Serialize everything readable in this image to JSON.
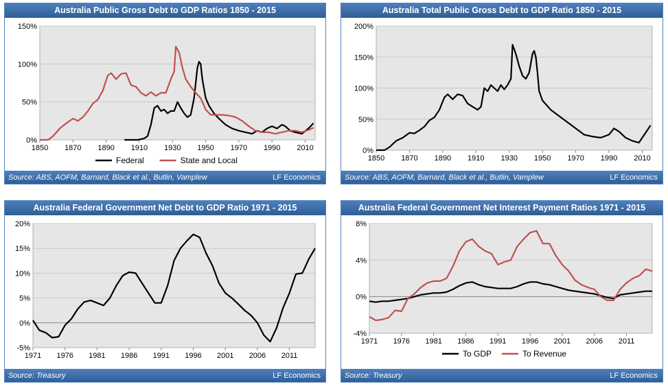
{
  "common": {
    "brand": "LF Economics"
  },
  "chart_data": [
    {
      "type": "line",
      "title": "Australia Public Gross Debt to GDP Ratios 1850 - 2015",
      "source": "Source: ABS, AOFM, Barnard, Black et al., Butlin, Vamplew",
      "xlim": [
        1850,
        2016
      ],
      "ylim": [
        0,
        150
      ],
      "x_ticks": [
        1850,
        1870,
        1890,
        1910,
        1930,
        1950,
        1970,
        1990,
        2010
      ],
      "x_tick_labels": [
        "1850",
        "1870",
        "1890",
        "1910",
        "1930",
        "1950",
        "1970",
        "1990",
        "2010"
      ],
      "y_ticks": [
        0,
        50,
        100,
        150
      ],
      "y_tick_labels": [
        "0%",
        "50%",
        "100%",
        "150%"
      ],
      "legend": "bottom",
      "series": [
        {
          "name": "Federal",
          "color": "#000000",
          "x": [
            1901,
            1906,
            1909,
            1911,
            1913,
            1915,
            1917,
            1919,
            1921,
            1923,
            1925,
            1927,
            1929,
            1931,
            1933,
            1935,
            1937,
            1939,
            1941,
            1943,
            1944,
            1945,
            1946,
            1947,
            1948,
            1950,
            1952,
            1955,
            1958,
            1962,
            1966,
            1970,
            1974,
            1978,
            1981,
            1984,
            1987,
            1990,
            1993,
            1996,
            1998,
            2001,
            2004,
            2008,
            2012,
            2015
          ],
          "y": [
            0,
            0,
            0,
            1,
            2,
            5,
            20,
            42,
            45,
            38,
            40,
            35,
            38,
            38,
            50,
            42,
            35,
            30,
            33,
            55,
            75,
            95,
            103,
            100,
            80,
            55,
            45,
            35,
            28,
            20,
            15,
            12,
            10,
            8,
            12,
            10,
            15,
            18,
            15,
            20,
            18,
            12,
            10,
            8,
            15,
            22
          ]
        },
        {
          "name": "State and Local",
          "color": "#c0504d",
          "x": [
            1850,
            1855,
            1858,
            1862,
            1866,
            1870,
            1873,
            1876,
            1879,
            1882,
            1885,
            1888,
            1891,
            1893,
            1896,
            1899,
            1902,
            1905,
            1908,
            1911,
            1914,
            1917,
            1920,
            1923,
            1926,
            1929,
            1931,
            1932,
            1934,
            1936,
            1938,
            1941,
            1944,
            1947,
            1950,
            1953,
            1956,
            1960,
            1964,
            1968,
            1972,
            1976,
            1980,
            1984,
            1988,
            1992,
            1996,
            2000,
            2004,
            2008,
            2012,
            2015
          ],
          "y": [
            0,
            0,
            5,
            15,
            22,
            28,
            25,
            30,
            38,
            48,
            53,
            65,
            85,
            88,
            80,
            87,
            88,
            72,
            70,
            62,
            58,
            63,
            58,
            62,
            62,
            80,
            90,
            123,
            115,
            95,
            80,
            70,
            62,
            55,
            40,
            33,
            33,
            33,
            32,
            30,
            25,
            18,
            12,
            10,
            10,
            8,
            10,
            12,
            12,
            10,
            13,
            16
          ]
        }
      ]
    },
    {
      "type": "line",
      "title": "Australia Total Public Gross Debt to GDP Ratio 1850 - 2015",
      "source": "Source: ABS, AOFM, Barnard, Black et al., Butlin, Vamplew",
      "xlim": [
        1850,
        2016
      ],
      "ylim": [
        0,
        200
      ],
      "x_ticks": [
        1850,
        1870,
        1890,
        1910,
        1930,
        1950,
        1970,
        1990,
        2010
      ],
      "x_tick_labels": [
        "1850",
        "1870",
        "1890",
        "1910",
        "1930",
        "1950",
        "1970",
        "1990",
        "2010"
      ],
      "y_ticks": [
        0,
        50,
        100,
        150,
        200
      ],
      "y_tick_labels": [
        "0%",
        "50%",
        "100%",
        "150%",
        "200%"
      ],
      "legend": "none",
      "series": [
        {
          "name": "Total",
          "color": "#000000",
          "x": [
            1850,
            1855,
            1858,
            1862,
            1866,
            1870,
            1873,
            1876,
            1879,
            1882,
            1885,
            1888,
            1891,
            1893,
            1896,
            1899,
            1902,
            1905,
            1908,
            1911,
            1913,
            1915,
            1917,
            1919,
            1921,
            1923,
            1925,
            1927,
            1929,
            1931,
            1932,
            1934,
            1936,
            1938,
            1940,
            1942,
            1944,
            1945,
            1946,
            1947,
            1948,
            1950,
            1955,
            1960,
            1965,
            1970,
            1975,
            1980,
            1985,
            1990,
            1993,
            1996,
            2000,
            2004,
            2008,
            2012,
            2015
          ],
          "y": [
            0,
            0,
            5,
            15,
            20,
            28,
            27,
            32,
            38,
            48,
            53,
            65,
            85,
            90,
            82,
            90,
            88,
            75,
            70,
            65,
            70,
            100,
            95,
            105,
            100,
            95,
            105,
            98,
            105,
            115,
            170,
            155,
            135,
            120,
            115,
            125,
            155,
            160,
            150,
            125,
            95,
            80,
            65,
            55,
            45,
            35,
            25,
            22,
            20,
            25,
            35,
            30,
            20,
            15,
            12,
            28,
            40
          ]
        }
      ]
    },
    {
      "type": "line",
      "title": "Australia Federal Government Net Debt to GDP Ratio 1971 - 2015",
      "source": "Source: Treasury",
      "xlim": [
        1971,
        2015
      ],
      "ylim": [
        -5,
        20
      ],
      "x_ticks": [
        1971,
        1976,
        1981,
        1986,
        1991,
        1996,
        2001,
        2006,
        2011
      ],
      "x_tick_labels": [
        "1971",
        "1976",
        "1981",
        "1986",
        "1991",
        "1996",
        "2001",
        "2006",
        "2011"
      ],
      "y_ticks": [
        -5,
        0,
        5,
        10,
        15,
        20
      ],
      "y_tick_labels": [
        "-5%",
        "0%",
        "5%",
        "10%",
        "15%",
        "20%"
      ],
      "legend": "none",
      "series": [
        {
          "name": "Net Debt",
          "color": "#000000",
          "x": [
            1971,
            1972,
            1973,
            1974,
            1975,
            1976,
            1977,
            1978,
            1979,
            1980,
            1981,
            1982,
            1983,
            1984,
            1985,
            1986,
            1987,
            1988,
            1989,
            1990,
            1991,
            1992,
            1993,
            1994,
            1995,
            1996,
            1997,
            1998,
            1999,
            2000,
            2001,
            2002,
            2003,
            2004,
            2005,
            2006,
            2007,
            2008,
            2009,
            2010,
            2011,
            2012,
            2013,
            2014,
            2015
          ],
          "y": [
            0.5,
            -1.5,
            -2,
            -3,
            -2.8,
            -0.5,
            0.8,
            2.8,
            4.2,
            4.5,
            4,
            3.5,
            5,
            7.5,
            9.5,
            10.2,
            10,
            8,
            6,
            4,
            4,
            7.5,
            12.5,
            15,
            16.5,
            17.8,
            17.2,
            14,
            11.5,
            8,
            6,
            5,
            3.8,
            2.5,
            1.5,
            0,
            -2.5,
            -3.8,
            -1,
            3,
            6,
            9.8,
            10,
            12.8,
            15
          ]
        }
      ]
    },
    {
      "type": "line",
      "title": "Australia Federal Government Net Interest Payment Ratios 1971 - 2015",
      "source": "Source: Treasury",
      "xlim": [
        1971,
        2015
      ],
      "ylim": [
        -4,
        8
      ],
      "x_ticks": [
        1971,
        1976,
        1981,
        1986,
        1991,
        1996,
        2001,
        2006,
        2011
      ],
      "x_tick_labels": [
        "1971",
        "1976",
        "1981",
        "1986",
        "1991",
        "1996",
        "2001",
        "2006",
        "2011"
      ],
      "y_ticks": [
        -4,
        0,
        4,
        8
      ],
      "y_tick_labels": [
        "-4%",
        "0%",
        "4%",
        "8%"
      ],
      "legend": "bottom",
      "series": [
        {
          "name": "To GDP",
          "color": "#000000",
          "x": [
            1971,
            1972,
            1973,
            1974,
            1975,
            1976,
            1977,
            1978,
            1979,
            1980,
            1981,
            1982,
            1983,
            1984,
            1985,
            1986,
            1987,
            1988,
            1989,
            1990,
            1991,
            1992,
            1993,
            1994,
            1995,
            1996,
            1997,
            1998,
            1999,
            2000,
            2001,
            2002,
            2003,
            2004,
            2005,
            2006,
            2007,
            2008,
            2009,
            2010,
            2011,
            2012,
            2013,
            2014,
            2015
          ],
          "y": [
            -0.5,
            -0.6,
            -0.5,
            -0.5,
            -0.4,
            -0.3,
            -0.2,
            0,
            0.2,
            0.3,
            0.4,
            0.4,
            0.5,
            0.8,
            1.2,
            1.5,
            1.6,
            1.3,
            1.1,
            1,
            0.9,
            0.9,
            0.9,
            1.1,
            1.4,
            1.6,
            1.6,
            1.4,
            1.3,
            1.1,
            0.9,
            0.7,
            0.6,
            0.5,
            0.4,
            0.3,
            0.1,
            -0.1,
            -0.2,
            0.2,
            0.3,
            0.4,
            0.5,
            0.6,
            0.6
          ]
        },
        {
          "name": "To Revenue",
          "color": "#c0504d",
          "x": [
            1971,
            1972,
            1973,
            1974,
            1975,
            1976,
            1977,
            1978,
            1979,
            1980,
            1981,
            1982,
            1983,
            1984,
            1985,
            1986,
            1987,
            1988,
            1989,
            1990,
            1991,
            1992,
            1993,
            1994,
            1995,
            1996,
            1997,
            1998,
            1999,
            2000,
            2001,
            2002,
            2003,
            2004,
            2005,
            2006,
            2007,
            2008,
            2009,
            2010,
            2011,
            2012,
            2013,
            2014,
            2015
          ],
          "y": [
            -2.2,
            -2.6,
            -2.5,
            -2.3,
            -1.5,
            -1.6,
            -0.2,
            0.3,
            1,
            1.5,
            1.7,
            1.7,
            2,
            3.3,
            5,
            6,
            6.3,
            5.5,
            5,
            4.7,
            3.5,
            3.8,
            4,
            5.5,
            6.3,
            7,
            7.2,
            5.8,
            5.8,
            4.5,
            3.5,
            2.8,
            1.8,
            1.3,
            1,
            0.8,
            0,
            -0.4,
            -0.4,
            0.8,
            1.5,
            2,
            2.3,
            3,
            2.8
          ]
        }
      ]
    }
  ]
}
